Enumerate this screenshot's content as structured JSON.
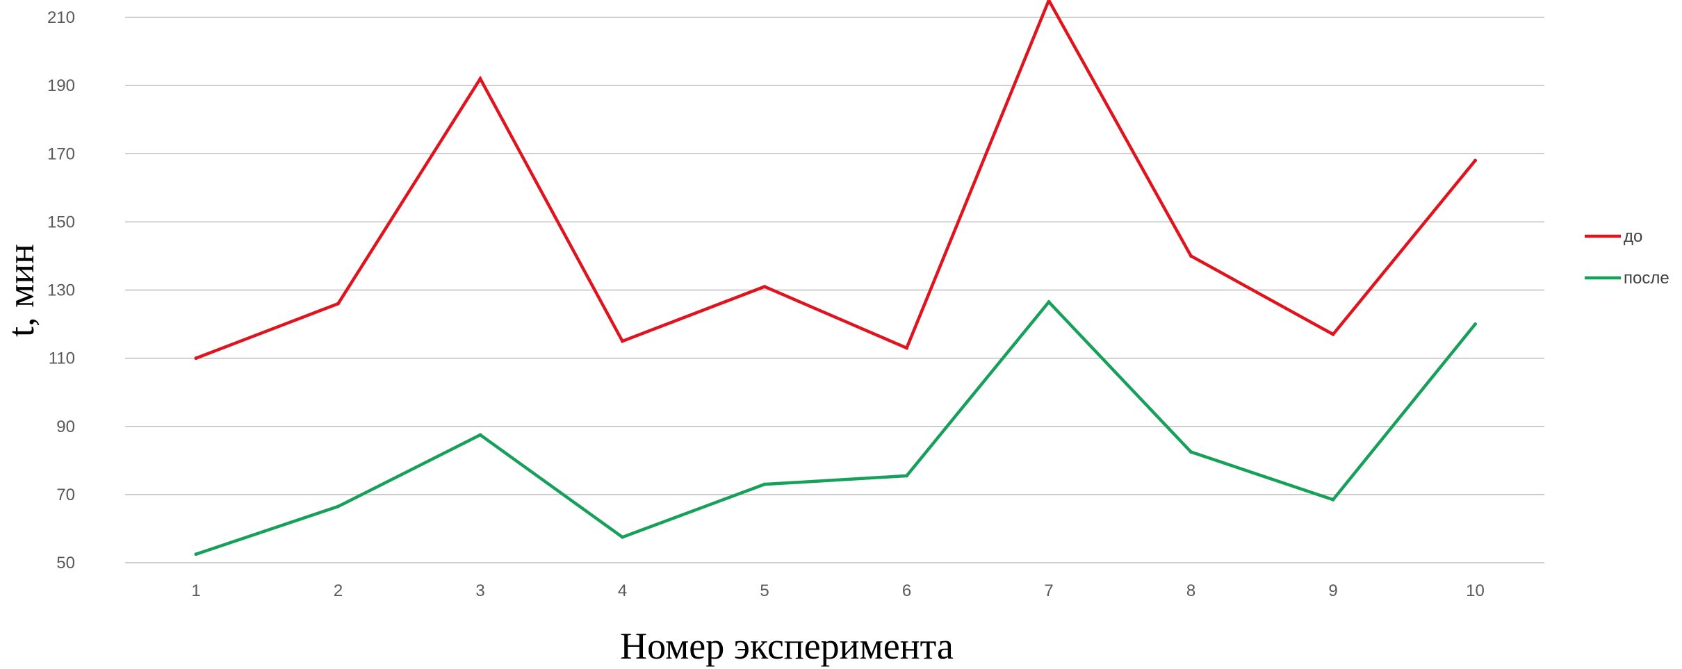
{
  "chart_data": {
    "type": "line",
    "title": "",
    "xlabel": "Номер эксперимента",
    "ylabel": "t, мин",
    "categories": [
      "1",
      "2",
      "3",
      "4",
      "5",
      "6",
      "7",
      "8",
      "9",
      "10"
    ],
    "ylim": [
      50,
      210
    ],
    "yticks": [
      "50",
      "70",
      "90",
      "110",
      "130",
      "150",
      "170",
      "190",
      "210"
    ],
    "grid": true,
    "legend_position": "right",
    "series": [
      {
        "name": "до",
        "color": "#e0141e",
        "values": [
          110,
          126,
          192,
          115,
          131,
          113,
          215,
          140,
          117,
          168
        ]
      },
      {
        "name": "после",
        "color": "#16a05a",
        "values": [
          52.5,
          66.5,
          87.5,
          57.5,
          73,
          75.5,
          126.5,
          82.5,
          68.5,
          120
        ]
      }
    ]
  }
}
